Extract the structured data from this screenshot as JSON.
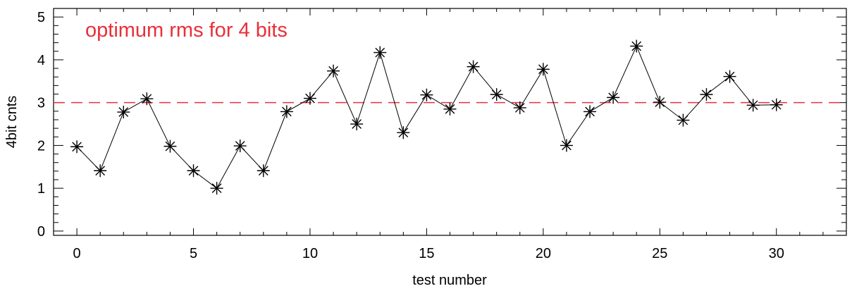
{
  "chart_data": {
    "type": "line",
    "marker": "asterisk",
    "xlabel": "test number",
    "ylabel": "4bit cnts",
    "xlim": [
      -1,
      33
    ],
    "ylim": [
      -0.1,
      5.2
    ],
    "xticks": [
      0,
      5,
      10,
      15,
      20,
      25,
      30
    ],
    "xtick_labels": [
      "0",
      "5",
      "10",
      "15",
      "20",
      "25",
      "30"
    ],
    "yticks": [
      0,
      1,
      2,
      3,
      4,
      5
    ],
    "ytick_labels": [
      "0",
      "1",
      "2",
      "3",
      "4",
      "5"
    ],
    "x_minor_step": 1,
    "y_minor_step": 0.2,
    "grid": false,
    "series": [
      {
        "x": [
          0,
          1,
          2,
          3,
          4,
          5,
          6,
          7,
          8,
          9,
          10,
          11,
          12,
          13,
          14,
          15,
          16,
          17,
          18,
          19,
          20,
          21,
          22,
          23,
          24,
          25,
          26,
          27,
          28,
          29,
          30
        ],
        "values": [
          1.97,
          1.41,
          2.78,
          3.09,
          1.98,
          1.41,
          1.0,
          1.99,
          1.41,
          2.79,
          3.1,
          3.74,
          2.5,
          4.17,
          2.3,
          3.18,
          2.85,
          3.84,
          3.19,
          2.88,
          3.78,
          2.0,
          2.79,
          3.12,
          4.32,
          3.01,
          2.59,
          3.19,
          3.61,
          2.94,
          2.95
        ],
        "color": "#000000"
      }
    ],
    "reference_lines": [
      {
        "y": 3,
        "style": "dashed",
        "color": "#e8303a"
      }
    ],
    "annotations": [
      {
        "text": "optimum rms for 4 bits",
        "color": "#e8303a",
        "placement": "top-left"
      }
    ]
  }
}
